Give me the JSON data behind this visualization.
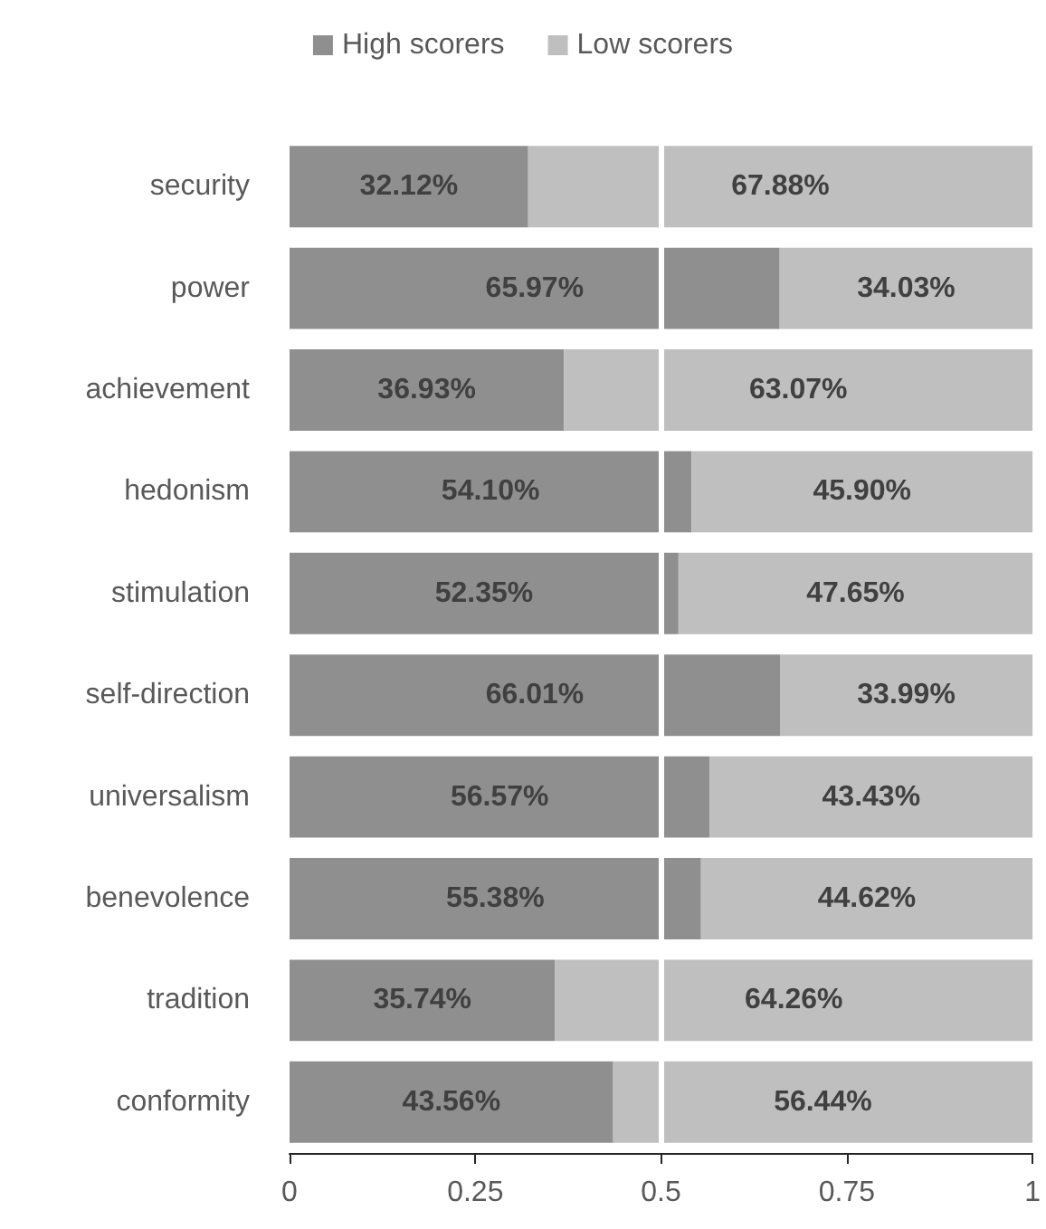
{
  "chart_data": {
    "type": "bar",
    "orientation": "horizontal",
    "stacked": true,
    "categories": [
      "security",
      "power",
      "achievement",
      "hedonism",
      "stimulation",
      "self-direction",
      "universalism",
      "benevolence",
      "tradition",
      "conformity"
    ],
    "series": [
      {
        "name": "High scorers",
        "color": "#8f8f8f",
        "values": [
          0.3212,
          0.6597,
          0.3693,
          0.541,
          0.5235,
          0.6601,
          0.5657,
          0.5538,
          0.3574,
          0.4356
        ],
        "value_labels": [
          "32.12%",
          "65.97%",
          "36.93%",
          "54.10%",
          "52.35%",
          "66.01%",
          "56.57%",
          "55.38%",
          "35.74%",
          "43.56%"
        ]
      },
      {
        "name": "Low scorers",
        "color": "#bfbfbf",
        "values": [
          0.6788,
          0.3403,
          0.6307,
          0.459,
          0.4765,
          0.3399,
          0.4343,
          0.4462,
          0.6426,
          0.5644
        ],
        "value_labels": [
          "67.88%",
          "34.03%",
          "63.07%",
          "45.90%",
          "47.65%",
          "33.99%",
          "43.43%",
          "44.62%",
          "64.26%",
          "56.44%"
        ]
      }
    ],
    "xlim": [
      0,
      1
    ],
    "xticks": [
      0,
      0.25,
      0.5,
      0.75,
      1
    ],
    "ref_lines": [
      {
        "axis": "x",
        "value": 0.5,
        "color": "#ffffff"
      }
    ],
    "grid": false,
    "legend": "top"
  }
}
